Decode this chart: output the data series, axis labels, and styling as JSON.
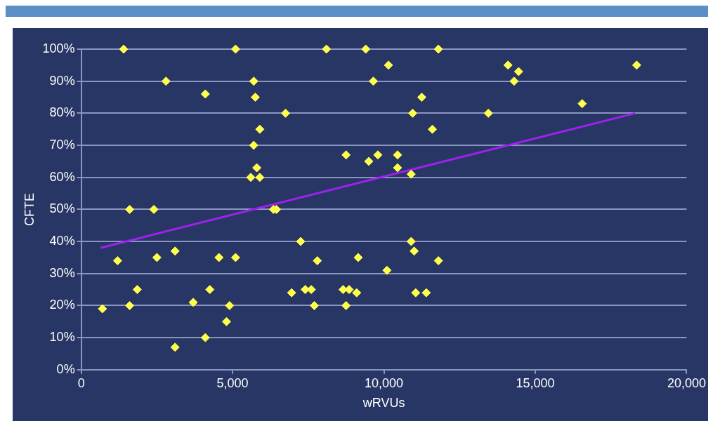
{
  "chart_data": {
    "type": "scatter",
    "xlabel": "wRVUs",
    "ylabel": "CFTE",
    "xlim": [
      0,
      20000
    ],
    "xticks": [
      0,
      {
        "value": 5000,
        "label": "5,000"
      },
      {
        "value": 10000,
        "label": "10,000"
      },
      {
        "value": 15000,
        "label": "15,000"
      },
      {
        "value": 20000,
        "label": "20,000"
      }
    ],
    "ylim": [
      0,
      100
    ],
    "yticks": [
      {
        "value": 0,
        "label": "0%"
      },
      {
        "value": 10,
        "label": "10%"
      },
      {
        "value": 20,
        "label": "20%"
      },
      {
        "value": 30,
        "label": "30%"
      },
      {
        "value": 40,
        "label": "40%"
      },
      {
        "value": 50,
        "label": "50%"
      },
      {
        "value": 60,
        "label": "60%"
      },
      {
        "value": 70,
        "label": "70%"
      },
      {
        "value": 80,
        "label": "80%"
      },
      {
        "value": 90,
        "label": "90%"
      },
      {
        "value": 100,
        "label": "100%"
      }
    ],
    "grid": "y",
    "legend": false,
    "series": [
      {
        "marker": "diamond",
        "color": "#ffff4d",
        "x": [
          1400,
          2800,
          4100,
          5100,
          5700,
          5750,
          5900,
          5700,
          5800,
          5600,
          5900,
          6350,
          6450,
          6750,
          1600,
          2400,
          1200,
          2500,
          3100,
          1850,
          1600,
          700,
          3700,
          4250,
          4550,
          4900,
          5100,
          4800,
          4100,
          3100,
          8100,
          9400,
          11800,
          10150,
          9650,
          11250,
          10950,
          11600,
          8750,
          9500,
          9800,
          10450,
          10450,
          10900,
          7250,
          7800,
          9150,
          10100,
          10900,
          11000,
          11800,
          6950,
          7400,
          7600,
          7700,
          8650,
          8850,
          9100,
          8750,
          11050,
          11400,
          14100,
          14450,
          14300,
          13450,
          16550,
          18350
        ],
        "values": [
          100,
          90,
          86,
          100,
          90,
          85,
          75,
          70,
          63,
          60,
          60,
          50,
          50,
          80,
          50,
          50,
          34,
          35,
          37,
          25,
          20,
          19,
          21,
          25,
          35,
          20,
          35,
          15,
          10,
          7,
          100,
          100,
          100,
          95,
          90,
          85,
          80,
          75,
          67,
          65,
          67,
          67,
          63,
          61,
          40,
          34,
          35,
          31,
          40,
          37,
          34,
          24,
          25,
          25,
          20,
          25,
          25,
          24,
          20,
          24,
          24,
          95,
          93,
          90,
          80,
          83,
          95
        ]
      },
      {
        "type": "line",
        "marker": "none",
        "color": "#a020f0",
        "x": [
          640,
          18300
        ],
        "values": [
          38,
          80
        ]
      }
    ]
  }
}
